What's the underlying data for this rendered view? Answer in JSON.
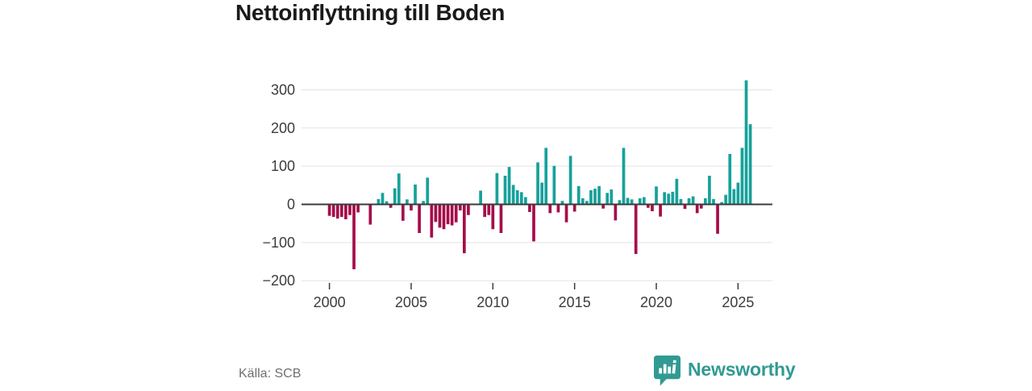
{
  "title": "Nettoinflyttning till Boden",
  "source": "Källa: SCB",
  "branding": {
    "name": "Newsworthy",
    "logo_icon": "bar-chart-speech-bubble-icon",
    "color": "#319a92"
  },
  "chart_data": {
    "type": "bar",
    "title": "Nettoinflyttning till Boden",
    "xlabel": "",
    "ylabel": "",
    "grid": "horizontal",
    "legend": "none",
    "ylim": [
      -200,
      340
    ],
    "y_tick_values": [
      -200,
      -100,
      0,
      100,
      200,
      300
    ],
    "y_tick_labels": [
      "−200",
      "−100",
      "0",
      "100",
      "200",
      "300"
    ],
    "x_tick_years": [
      2000,
      2005,
      2010,
      2015,
      2020,
      2025
    ],
    "x_tick_labels": [
      "2000",
      "2005",
      "2010",
      "2015",
      "2020",
      "2025"
    ],
    "colors": {
      "positive": "#16a19b",
      "negative": "#a50d4a",
      "grid": "#e3e3e3",
      "zero_line": "#3a3a3a",
      "axis_text": "#3c3c3c"
    },
    "quarters": [
      "2000 Q1",
      "2000 Q2",
      "2000 Q3",
      "2000 Q4",
      "2001 Q1",
      "2001 Q2",
      "2001 Q3",
      "2001 Q4",
      "2002 Q1",
      "2002 Q2",
      "2002 Q3",
      "2002 Q4",
      "2003 Q1",
      "2003 Q2",
      "2003 Q3",
      "2003 Q4",
      "2004 Q1",
      "2004 Q2",
      "2004 Q3",
      "2004 Q4",
      "2005 Q1",
      "2005 Q2",
      "2005 Q3",
      "2005 Q4",
      "2006 Q1",
      "2006 Q2",
      "2006 Q3",
      "2006 Q4",
      "2007 Q1",
      "2007 Q2",
      "2007 Q3",
      "2007 Q4",
      "2008 Q1",
      "2008 Q2",
      "2008 Q3",
      "2008 Q4",
      "2009 Q1",
      "2009 Q2",
      "2009 Q3",
      "2009 Q4",
      "2010 Q1",
      "2010 Q2",
      "2010 Q3",
      "2010 Q4",
      "2011 Q1",
      "2011 Q2",
      "2011 Q3",
      "2011 Q4",
      "2012 Q1",
      "2012 Q2",
      "2012 Q3",
      "2012 Q4",
      "2013 Q1",
      "2013 Q2",
      "2013 Q3",
      "2013 Q4",
      "2014 Q1",
      "2014 Q2",
      "2014 Q3",
      "2014 Q4",
      "2015 Q1",
      "2015 Q2",
      "2015 Q3",
      "2015 Q4",
      "2016 Q1",
      "2016 Q2",
      "2016 Q3",
      "2016 Q4",
      "2017 Q1",
      "2017 Q2",
      "2017 Q3",
      "2017 Q4",
      "2018 Q1",
      "2018 Q2",
      "2018 Q3",
      "2018 Q4",
      "2019 Q1",
      "2019 Q2",
      "2019 Q3",
      "2019 Q4",
      "2020 Q1",
      "2020 Q2",
      "2020 Q3",
      "2020 Q4",
      "2021 Q1",
      "2021 Q2",
      "2021 Q3",
      "2021 Q4",
      "2022 Q1",
      "2022 Q2",
      "2022 Q3",
      "2022 Q4",
      "2023 Q1",
      "2023 Q2",
      "2023 Q3",
      "2023 Q4",
      "2024 Q1",
      "2024 Q2",
      "2024 Q3",
      "2024 Q4",
      "2025 Q1",
      "2025 Q2",
      "2025 Q3",
      "2025 Q4"
    ],
    "values": [
      -30,
      -33,
      -37,
      -33,
      -39,
      -28,
      -170,
      -21,
      0,
      0,
      -53,
      0,
      14,
      30,
      8,
      -9,
      42,
      81,
      -43,
      13,
      -16,
      52,
      -75,
      9,
      70,
      -87,
      -46,
      -61,
      -65,
      -52,
      -55,
      -47,
      -16,
      -128,
      -28,
      0,
      0,
      36,
      -33,
      -28,
      -65,
      82,
      -75,
      75,
      98,
      51,
      37,
      32,
      19,
      -20,
      -97,
      110,
      57,
      148,
      -23,
      101,
      -21,
      9,
      -47,
      127,
      -19,
      48,
      16,
      9,
      37,
      41,
      48,
      -11,
      30,
      39,
      -42,
      11,
      148,
      17,
      13,
      -130,
      16,
      19,
      -9,
      -18,
      47,
      -32,
      32,
      28,
      33,
      67,
      14,
      -12,
      16,
      21,
      -23,
      -11,
      16,
      75,
      14,
      -77,
      6,
      25,
      132,
      40,
      57,
      148,
      325,
      210
    ]
  }
}
